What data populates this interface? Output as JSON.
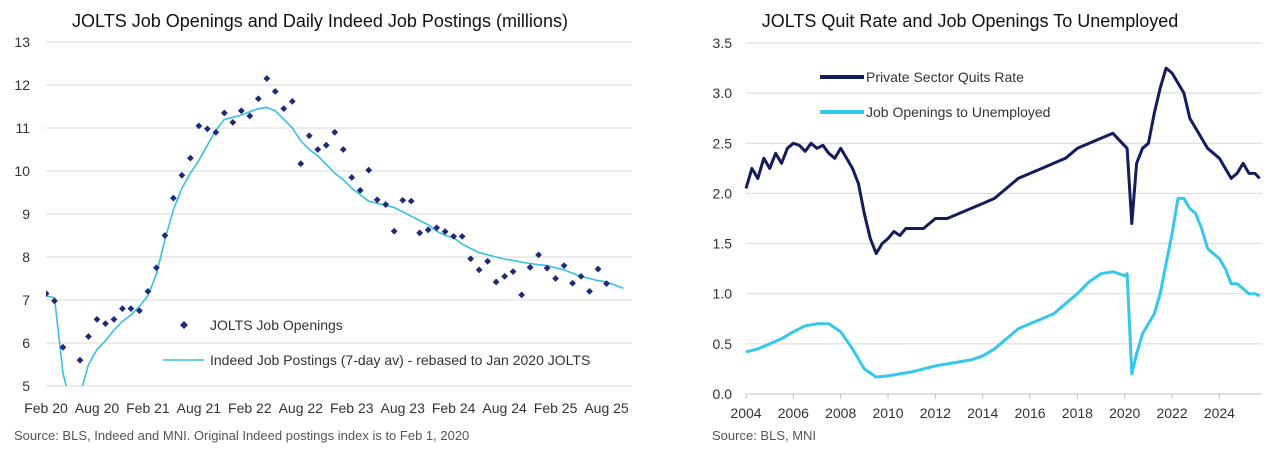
{
  "chart_data": [
    {
      "type": "line",
      "title": "JOLTS Job Openings and Daily Indeed Job Postings (millions)",
      "ylim": [
        5,
        13
      ],
      "yticks": [
        5,
        6,
        7,
        8,
        9,
        10,
        11,
        12,
        13
      ],
      "xlim": [
        "2020-02",
        "2025-11"
      ],
      "xtick_labels": [
        "Feb 20",
        "Aug 20",
        "Feb 21",
        "Aug 21",
        "Feb 22",
        "Aug 22",
        "Feb 23",
        "Aug 23",
        "Feb 24",
        "Aug 24",
        "Feb 25",
        "Aug 25"
      ],
      "xtick_dates": [
        "2020-02",
        "2020-08",
        "2021-02",
        "2021-08",
        "2022-02",
        "2022-08",
        "2023-02",
        "2023-08",
        "2024-02",
        "2024-08",
        "2025-02",
        "2025-08"
      ],
      "grid": true,
      "legend_position": "bottom-right",
      "series": [
        {
          "name": "JOLTS Job Openings",
          "kind": "scatter",
          "color": "#1f2a7a",
          "x": [
            "2020-02",
            "2020-03",
            "2020-04",
            "2020-05",
            "2020-06",
            "2020-07",
            "2020-08",
            "2020-09",
            "2020-10",
            "2020-11",
            "2020-12",
            "2021-01",
            "2021-02",
            "2021-03",
            "2021-04",
            "2021-05",
            "2021-06",
            "2021-07",
            "2021-08",
            "2021-09",
            "2021-10",
            "2021-11",
            "2021-12",
            "2022-01",
            "2022-02",
            "2022-03",
            "2022-04",
            "2022-05",
            "2022-06",
            "2022-07",
            "2022-08",
            "2022-09",
            "2022-10",
            "2022-11",
            "2022-12",
            "2023-01",
            "2023-02",
            "2023-03",
            "2023-04",
            "2023-05",
            "2023-06",
            "2023-07",
            "2023-08",
            "2023-09",
            "2023-10",
            "2023-11",
            "2023-12",
            "2024-01",
            "2024-02",
            "2024-03",
            "2024-04",
            "2024-05",
            "2024-06",
            "2024-07",
            "2024-08",
            "2024-09",
            "2024-10",
            "2024-11",
            "2024-12",
            "2025-01",
            "2025-02",
            "2025-03",
            "2025-04",
            "2025-05",
            "2025-06",
            "2025-07",
            "2025-08"
          ],
          "y": [
            7.15,
            6.98,
            5.9,
            4.9,
            5.6,
            6.15,
            6.55,
            6.45,
            6.55,
            6.8,
            6.8,
            6.75,
            7.2,
            7.75,
            8.5,
            9.37,
            9.9,
            10.3,
            11.05,
            10.98,
            10.9,
            11.35,
            11.13,
            11.4,
            11.28,
            11.68,
            12.15,
            11.85,
            11.45,
            11.62,
            10.17,
            10.82,
            10.5,
            10.6,
            10.9,
            10.5,
            9.85,
            9.55,
            10.02,
            9.33,
            9.22,
            8.6,
            9.32,
            9.3,
            8.56,
            8.63,
            8.68,
            8.59,
            8.48,
            8.48,
            7.96,
            7.7,
            7.9,
            7.42,
            7.55,
            7.66,
            7.12,
            7.76,
            8.05,
            7.74,
            7.5,
            7.8,
            7.39,
            7.55,
            7.2,
            7.72,
            7.38
          ]
        },
        {
          "name": "Indeed Job Postings (7-day av) - rebased to Jan 2020 JOLTS",
          "kind": "line",
          "color": "#36c1df",
          "x": [
            "2020-02",
            "2020-03",
            "2020-04",
            "2020-05",
            "2020-06",
            "2020-07",
            "2020-08",
            "2020-09",
            "2020-10",
            "2020-11",
            "2020-12",
            "2021-01",
            "2021-02",
            "2021-03",
            "2021-04",
            "2021-05",
            "2021-06",
            "2021-07",
            "2021-08",
            "2021-09",
            "2021-10",
            "2021-11",
            "2021-12",
            "2022-01",
            "2022-02",
            "2022-03",
            "2022-04",
            "2022-05",
            "2022-06",
            "2022-07",
            "2022-08",
            "2022-09",
            "2022-10",
            "2022-11",
            "2022-12",
            "2023-01",
            "2023-02",
            "2023-03",
            "2023-04",
            "2023-05",
            "2023-06",
            "2023-07",
            "2023-08",
            "2023-09",
            "2023-10",
            "2023-11",
            "2023-12",
            "2024-01",
            "2024-02",
            "2024-03",
            "2024-04",
            "2024-05",
            "2024-06",
            "2024-07",
            "2024-08",
            "2024-09",
            "2024-10",
            "2024-11",
            "2024-12",
            "2025-01",
            "2025-02",
            "2025-03",
            "2025-04",
            "2025-05",
            "2025-06",
            "2025-07",
            "2025-08",
            "2025-09",
            "2025-10"
          ],
          "y": [
            7.1,
            7.05,
            5.3,
            4.5,
            4.8,
            5.5,
            5.85,
            6.05,
            6.3,
            6.5,
            6.65,
            6.85,
            7.1,
            7.6,
            8.4,
            9.1,
            9.6,
            9.95,
            10.25,
            10.6,
            10.95,
            11.2,
            11.25,
            11.3,
            11.38,
            11.45,
            11.48,
            11.4,
            11.2,
            11.0,
            10.7,
            10.5,
            10.35,
            10.15,
            9.95,
            9.8,
            9.6,
            9.45,
            9.3,
            9.25,
            9.2,
            9.15,
            9.05,
            8.95,
            8.85,
            8.75,
            8.6,
            8.5,
            8.45,
            8.3,
            8.2,
            8.1,
            8.05,
            8.0,
            7.95,
            7.92,
            7.88,
            7.85,
            7.82,
            7.8,
            7.75,
            7.7,
            7.62,
            7.55,
            7.5,
            7.45,
            7.42,
            7.35,
            7.27
          ]
        }
      ],
      "source": "Source: BLS, Indeed and MNI. Original Indeed postings index is to Feb 1, 2020"
    },
    {
      "type": "line",
      "title": "JOLTS Quit Rate and Job Openings To Unemployed",
      "ylim": [
        0,
        3.5
      ],
      "yticks": [
        "0.0",
        "0.5",
        "1.0",
        "1.5",
        "2.0",
        "2.5",
        "3.0",
        "3.5"
      ],
      "xlim": [
        2004,
        2025.8
      ],
      "xticks": [
        2004,
        2006,
        2008,
        2010,
        2012,
        2014,
        2016,
        2018,
        2020,
        2022,
        2024
      ],
      "grid": true,
      "legend_position": "top-left",
      "series": [
        {
          "name": "Private Sector Quits Rate",
          "color": "#141c5c",
          "x": [
            2004.0,
            2004.25,
            2004.5,
            2004.75,
            2005.0,
            2005.25,
            2005.5,
            2005.75,
            2006.0,
            2006.25,
            2006.5,
            2006.75,
            2007.0,
            2007.25,
            2007.5,
            2007.75,
            2008.0,
            2008.25,
            2008.5,
            2008.75,
            2009.0,
            2009.25,
            2009.5,
            2009.75,
            2010.0,
            2010.25,
            2010.5,
            2010.75,
            2011.0,
            2011.5,
            2012.0,
            2012.5,
            2013.0,
            2013.5,
            2014.0,
            2014.5,
            2015.0,
            2015.5,
            2016.0,
            2016.5,
            2017.0,
            2017.5,
            2018.0,
            2018.5,
            2019.0,
            2019.5,
            2019.9,
            2020.1,
            2020.3,
            2020.5,
            2020.75,
            2021.0,
            2021.25,
            2021.5,
            2021.75,
            2022.0,
            2022.25,
            2022.5,
            2022.75,
            2023.0,
            2023.25,
            2023.5,
            2023.75,
            2024.0,
            2024.25,
            2024.5,
            2024.75,
            2025.0,
            2025.25,
            2025.5,
            2025.7
          ],
          "y": [
            2.05,
            2.25,
            2.15,
            2.35,
            2.25,
            2.4,
            2.3,
            2.45,
            2.5,
            2.48,
            2.42,
            2.5,
            2.45,
            2.48,
            2.4,
            2.35,
            2.45,
            2.35,
            2.25,
            2.1,
            1.8,
            1.55,
            1.4,
            1.5,
            1.55,
            1.62,
            1.58,
            1.65,
            1.65,
            1.65,
            1.75,
            1.75,
            1.8,
            1.85,
            1.9,
            1.95,
            2.05,
            2.15,
            2.2,
            2.25,
            2.3,
            2.35,
            2.45,
            2.5,
            2.55,
            2.6,
            2.5,
            2.45,
            1.7,
            2.3,
            2.45,
            2.5,
            2.8,
            3.05,
            3.25,
            3.2,
            3.1,
            3.0,
            2.75,
            2.65,
            2.55,
            2.45,
            2.4,
            2.35,
            2.25,
            2.15,
            2.2,
            2.3,
            2.2,
            2.2,
            2.15
          ]
        },
        {
          "name": "Job Openings to Unemployed",
          "color": "#36c8ea",
          "x": [
            2004.0,
            2004.5,
            2005.0,
            2005.5,
            2006.0,
            2006.5,
            2007.0,
            2007.5,
            2008.0,
            2008.5,
            2009.0,
            2009.5,
            2010.0,
            2010.5,
            2011.0,
            2011.5,
            2012.0,
            2012.5,
            2013.0,
            2013.5,
            2014.0,
            2014.5,
            2015.0,
            2015.5,
            2016.0,
            2016.5,
            2017.0,
            2017.5,
            2018.0,
            2018.5,
            2019.0,
            2019.5,
            2020.0,
            2020.1,
            2020.3,
            2020.5,
            2020.75,
            2021.0,
            2021.25,
            2021.5,
            2021.75,
            2022.0,
            2022.25,
            2022.5,
            2022.75,
            2023.0,
            2023.25,
            2023.5,
            2023.75,
            2024.0,
            2024.25,
            2024.5,
            2024.75,
            2025.0,
            2025.25,
            2025.5,
            2025.7
          ],
          "y": [
            0.42,
            0.45,
            0.5,
            0.55,
            0.62,
            0.68,
            0.7,
            0.7,
            0.62,
            0.45,
            0.25,
            0.17,
            0.18,
            0.2,
            0.22,
            0.25,
            0.28,
            0.3,
            0.32,
            0.34,
            0.38,
            0.45,
            0.55,
            0.65,
            0.7,
            0.75,
            0.8,
            0.9,
            1.0,
            1.12,
            1.2,
            1.22,
            1.18,
            1.2,
            0.2,
            0.4,
            0.6,
            0.7,
            0.8,
            1.0,
            1.3,
            1.6,
            1.95,
            1.95,
            1.85,
            1.8,
            1.65,
            1.45,
            1.4,
            1.35,
            1.25,
            1.1,
            1.1,
            1.05,
            1.0,
            1.0,
            0.98
          ]
        }
      ],
      "source": "Source: BLS, MNI"
    }
  ]
}
